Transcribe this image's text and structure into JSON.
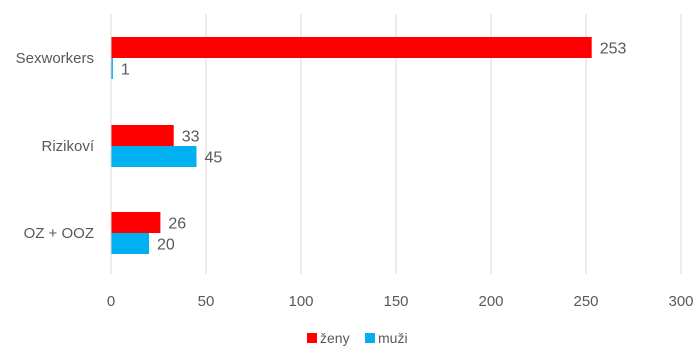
{
  "chart_data": {
    "type": "bar",
    "orientation": "horizontal",
    "title": "",
    "xlabel": "",
    "ylabel": "",
    "categories": [
      "Sexworkers",
      "Rizikoví",
      "OZ + OOZ"
    ],
    "series": [
      {
        "name": "ženy",
        "color": "#ff0000",
        "values": [
          253,
          33,
          26
        ]
      },
      {
        "name": "muži",
        "color": "#00b0f0",
        "values": [
          1,
          45,
          20
        ]
      }
    ],
    "xlim": [
      0,
      300
    ],
    "xticks": [
      "0",
      "50",
      "100",
      "150",
      "200",
      "250",
      "300"
    ],
    "grid": "vertical",
    "data_labels": true,
    "legend_position": "bottom"
  }
}
